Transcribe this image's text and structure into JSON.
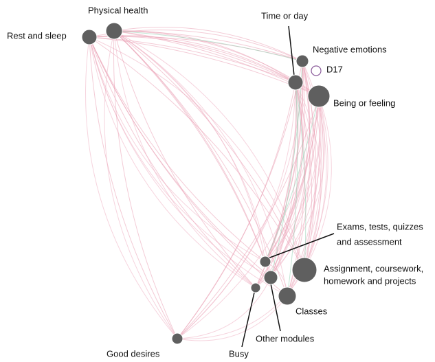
{
  "nodes": [
    {
      "label": "Rest and sleep"
    },
    {
      "label": "Physical health"
    },
    {
      "label": "Time or day"
    },
    {
      "label": "Negative emotions"
    },
    {
      "label": "D17"
    },
    {
      "label": "Being or feeling"
    },
    {
      "label_lines": [
        "Exams, tests, quizzes",
        "and assessment"
      ]
    },
    {
      "label_lines": [
        "Assignment, coursework,",
        "homework and projects"
      ]
    },
    {
      "label": "Other modules"
    },
    {
      "label": "Busy"
    },
    {
      "label": "Classes"
    },
    {
      "label": "Good desires"
    }
  ]
}
